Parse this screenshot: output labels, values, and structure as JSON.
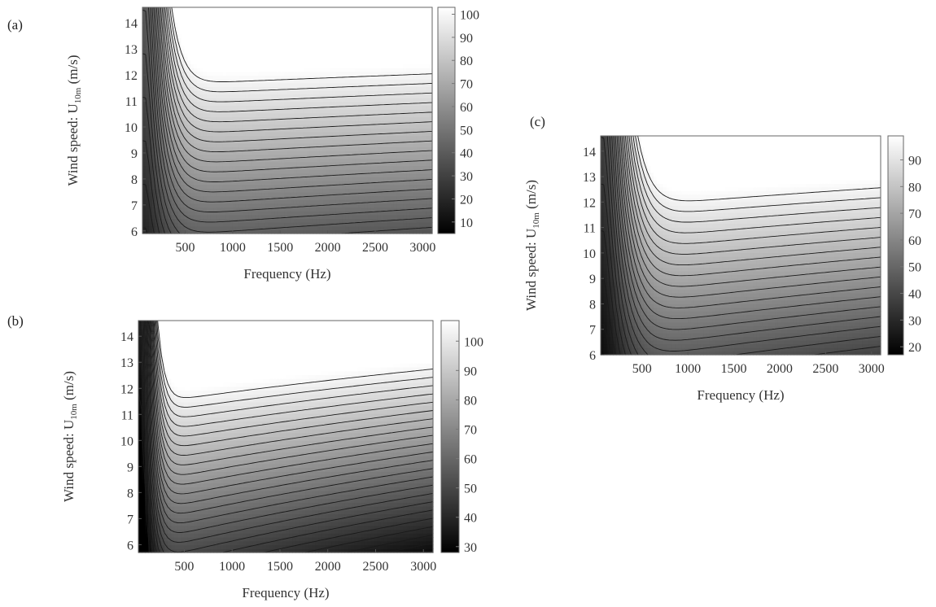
{
  "chart_data": [
    {
      "type": "heatmap",
      "panel": "(a)",
      "xlabel": "Frequency (Hz)",
      "ylabel": "Wind speed: U",
      "ylabel_sub": "10m",
      "ylabel_unit": "(m/s)",
      "xticks": [
        500,
        1000,
        1500,
        2000,
        2500,
        3000
      ],
      "yticks": [
        6,
        7,
        8,
        9,
        10,
        11,
        12,
        13,
        14
      ],
      "xlim": [
        50,
        3100
      ],
      "ylim": [
        5.9,
        14.6
      ],
      "colorbar_ticks": [
        10,
        20,
        30,
        40,
        50,
        60,
        70,
        80,
        90,
        100
      ],
      "colorbar_range": [
        5,
        103
      ],
      "colormap": [
        "#000000",
        "#ffffff"
      ],
      "contour_levels": 26,
      "model": {
        "fmin": 80,
        "fpeak": 500,
        "slope_y": 7.5,
        "slope_f": 0.0025,
        "base": 44,
        "knee": 0.45
      }
    },
    {
      "type": "heatmap",
      "panel": "(b)",
      "xlabel": "Frequency (Hz)",
      "ylabel": "Wind speed: U",
      "ylabel_sub": "10m",
      "ylabel_unit": "(m/s)",
      "xticks": [
        500,
        1000,
        1500,
        2000,
        2500,
        3000
      ],
      "yticks": [
        6,
        7,
        8,
        9,
        10,
        11,
        12,
        13,
        14
      ],
      "xlim": [
        20,
        3100
      ],
      "ylim": [
        5.7,
        14.6
      ],
      "colorbar_ticks": [
        30,
        40,
        50,
        60,
        70,
        80,
        90,
        100
      ],
      "colorbar_range": [
        28,
        107
      ],
      "colormap": [
        "#000000",
        "#ffffff"
      ],
      "contour_levels": 24,
      "model": {
        "fmin": 40,
        "fpeak": 300,
        "slope_y": 6.8,
        "slope_f": 0.0075,
        "base": 55,
        "knee": 0.35
      }
    },
    {
      "type": "heatmap",
      "panel": "(c)",
      "xlabel": "Frequency (Hz)",
      "ylabel": "Wind speed: U",
      "ylabel_sub": "10m",
      "ylabel_unit": "(m/s)",
      "xticks": [
        500,
        1000,
        1500,
        2000,
        2500,
        3000
      ],
      "yticks": [
        6,
        7,
        8,
        9,
        10,
        11,
        12,
        13,
        14
      ],
      "xlim": [
        50,
        3100
      ],
      "ylim": [
        6,
        14.6
      ],
      "colorbar_ticks": [
        20,
        30,
        40,
        50,
        60,
        70,
        80,
        90
      ],
      "colorbar_range": [
        17,
        99
      ],
      "colormap": [
        "#000000",
        "#ffffff"
      ],
      "contour_levels": 24,
      "model": {
        "fmin": 80,
        "fpeak": 600,
        "slope_y": 6.2,
        "slope_f": 0.004,
        "base": 48,
        "knee": 0.45
      }
    }
  ]
}
